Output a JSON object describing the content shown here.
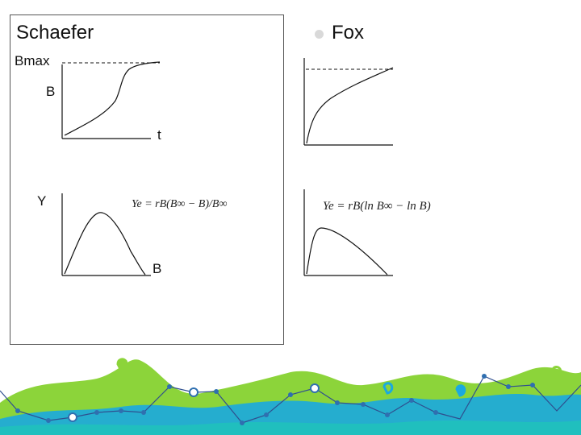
{
  "left": {
    "title": "Schaefer",
    "bmax_label": "Bmax",
    "b_label": "B",
    "t_label": "t",
    "y_label": "Y",
    "b_axis_label": "B",
    "formula": "Ye = rB(B∞ − B)/B∞"
  },
  "right": {
    "title": "Fox",
    "formula": "Ye = rB(ln B∞ − ln B)"
  },
  "colors": {
    "accent_blue": "#1aa9e0",
    "accent_green": "#8cd43a",
    "node_blue": "#2f6fb0"
  }
}
